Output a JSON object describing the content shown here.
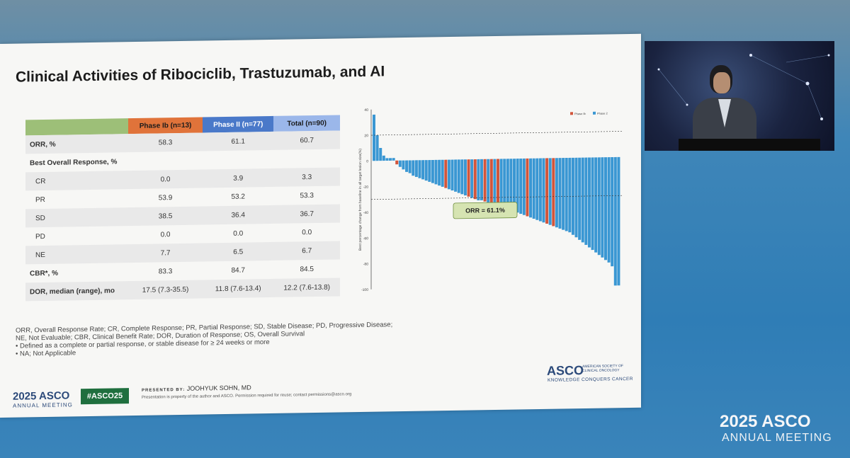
{
  "slide": {
    "title": "Clinical Activities of Ribociclib, Trastuzumab, and AI",
    "table": {
      "headers": [
        "",
        "Phase Ib (n=13)",
        "Phase II (n=77)",
        "Total (n=90)"
      ],
      "rows": [
        {
          "label": "ORR, %",
          "values": [
            "58.3",
            "61.1",
            "60.7"
          ]
        },
        {
          "label": "Best Overall Response, %",
          "values": [
            "",
            "",
            ""
          ]
        },
        {
          "label": "CR",
          "values": [
            "0.0",
            "3.9",
            "3.3"
          ]
        },
        {
          "label": "PR",
          "values": [
            "53.9",
            "53.2",
            "53.3"
          ]
        },
        {
          "label": "SD",
          "values": [
            "38.5",
            "36.4",
            "36.7"
          ]
        },
        {
          "label": "PD",
          "values": [
            "0.0",
            "0.0",
            "0.0"
          ]
        },
        {
          "label": "NE",
          "values": [
            "7.7",
            "6.5",
            "6.7"
          ]
        },
        {
          "label": "CBR*, %",
          "values": [
            "83.3",
            "84.7",
            "84.5"
          ]
        },
        {
          "label": "DOR, median (range), mo",
          "values": [
            "17.5 (7.3-35.5)",
            "11.8 (7.6-13.4)",
            "12.2 (7.6-13.8)"
          ]
        }
      ]
    },
    "footnotes": [
      "ORR, Overall Response Rate; CR, Complete Response; PR, Partial Response; SD, Stable Disease; PD, Progressive Disease;",
      "NE, Not Evaluable; CBR, Clinical Benefit Rate; DOR, Duration of Response; OS, Overall Survival",
      "•   Defined as a complete or partial response, or stable disease for ≥ 24 weeks or more",
      "•   NA; Not Applicable"
    ],
    "footer": {
      "meeting_year": "2025 ASCO",
      "meeting_sub": "ANNUAL MEETING",
      "hashtag": "#ASCO25",
      "presented_label": "PRESENTED BY:",
      "presenter": "JOOHYUK SOHN, MD",
      "property_note": "Presentation is property of the author and ASCO. Permission required for reuse; contact permissions@asco.org",
      "asco": "ASCO",
      "asco_full": "AMERICAN SOCIETY OF CLINICAL ONCOLOGY",
      "asco_tagline": "KNOWLEDGE CONQUERS CANCER"
    }
  },
  "overlay": {
    "meeting_year": "2025 ASCO",
    "meeting_sub": "ANNUAL MEETING"
  },
  "colors": {
    "phase_ib": "#d2553b",
    "phase_ii": "#3a97d3"
  },
  "chart_data": {
    "type": "bar",
    "ylabel": "Best percentage change from baseline in all target lesion size(%)",
    "ylim": [
      -100,
      40
    ],
    "yticks": [
      "40",
      "20",
      "0",
      "-20",
      "-40",
      "-60",
      "-80",
      "-100"
    ],
    "reference_lines": [
      20,
      -30
    ],
    "annotation": "ORR = 61.1%",
    "series": [
      {
        "name": "Phase Ib"
      },
      {
        "name": "Phase 2"
      }
    ],
    "bars": [
      {
        "v": 36,
        "s": 1
      },
      {
        "v": 20,
        "s": 1
      },
      {
        "v": 10,
        "s": 1
      },
      {
        "v": 4,
        "s": 1
      },
      {
        "v": 2,
        "s": 1
      },
      {
        "v": 2,
        "s": 1
      },
      {
        "v": 2,
        "s": 1
      },
      {
        "v": -3,
        "s": 0
      },
      {
        "v": -5,
        "s": 1
      },
      {
        "v": -7,
        "s": 1
      },
      {
        "v": -9,
        "s": 1
      },
      {
        "v": -10,
        "s": 1
      },
      {
        "v": -12,
        "s": 1
      },
      {
        "v": -13,
        "s": 1
      },
      {
        "v": -14,
        "s": 1
      },
      {
        "v": -15,
        "s": 1
      },
      {
        "v": -16,
        "s": 1
      },
      {
        "v": -17,
        "s": 1
      },
      {
        "v": -18,
        "s": 1
      },
      {
        "v": -19,
        "s": 1
      },
      {
        "v": -20,
        "s": 1
      },
      {
        "v": -21,
        "s": 1
      },
      {
        "v": -22,
        "s": 0
      },
      {
        "v": -23,
        "s": 1
      },
      {
        "v": -24,
        "s": 1
      },
      {
        "v": -25,
        "s": 1
      },
      {
        "v": -26,
        "s": 1
      },
      {
        "v": -27,
        "s": 1
      },
      {
        "v": -28,
        "s": 1
      },
      {
        "v": -29,
        "s": 0
      },
      {
        "v": -30,
        "s": 1
      },
      {
        "v": -31,
        "s": 0
      },
      {
        "v": -32,
        "s": 1
      },
      {
        "v": -32,
        "s": 1
      },
      {
        "v": -33,
        "s": 0
      },
      {
        "v": -34,
        "s": 1
      },
      {
        "v": -34,
        "s": 0
      },
      {
        "v": -35,
        "s": 1
      },
      {
        "v": -36,
        "s": 0
      },
      {
        "v": -37,
        "s": 1
      },
      {
        "v": -38,
        "s": 1
      },
      {
        "v": -39,
        "s": 1
      },
      {
        "v": -40,
        "s": 1
      },
      {
        "v": -41,
        "s": 1
      },
      {
        "v": -42,
        "s": 1
      },
      {
        "v": -43,
        "s": 1
      },
      {
        "v": -44,
        "s": 1
      },
      {
        "v": -45,
        "s": 0
      },
      {
        "v": -46,
        "s": 1
      },
      {
        "v": -47,
        "s": 1
      },
      {
        "v": -48,
        "s": 1
      },
      {
        "v": -49,
        "s": 1
      },
      {
        "v": -50,
        "s": 1
      },
      {
        "v": -51,
        "s": 0
      },
      {
        "v": -52,
        "s": 1
      },
      {
        "v": -53,
        "s": 0
      },
      {
        "v": -54,
        "s": 1
      },
      {
        "v": -55,
        "s": 1
      },
      {
        "v": -56,
        "s": 1
      },
      {
        "v": -57,
        "s": 1
      },
      {
        "v": -58,
        "s": 1
      },
      {
        "v": -60,
        "s": 1
      },
      {
        "v": -62,
        "s": 1
      },
      {
        "v": -64,
        "s": 1
      },
      {
        "v": -66,
        "s": 1
      },
      {
        "v": -68,
        "s": 1
      },
      {
        "v": -70,
        "s": 1
      },
      {
        "v": -72,
        "s": 1
      },
      {
        "v": -74,
        "s": 1
      },
      {
        "v": -76,
        "s": 1
      },
      {
        "v": -78,
        "s": 1
      },
      {
        "v": -80,
        "s": 1
      },
      {
        "v": -82,
        "s": 1
      },
      {
        "v": -85,
        "s": 1
      },
      {
        "v": -100,
        "s": 1
      },
      {
        "v": -100,
        "s": 1
      }
    ]
  }
}
